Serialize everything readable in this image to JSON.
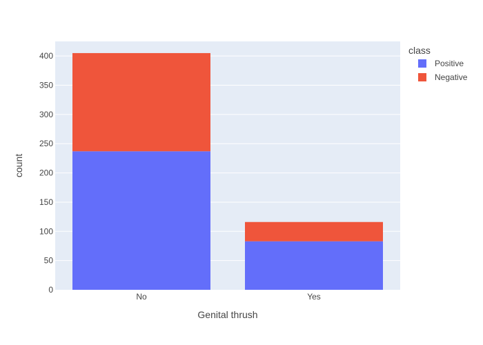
{
  "chart_data": {
    "type": "bar",
    "barmode": "stack",
    "categories": [
      "No",
      "Yes"
    ],
    "series": [
      {
        "name": "Positive",
        "values": [
          237,
          83
        ],
        "color": "#636efa"
      },
      {
        "name": "Negative",
        "values": [
          168,
          33
        ],
        "color": "#ef553b"
      }
    ],
    "xlabel": "Genital thrush",
    "ylabel": "count",
    "ylim": [
      0,
      425
    ],
    "yticks": [
      0,
      50,
      100,
      150,
      200,
      250,
      300,
      350,
      400
    ],
    "legend_title": "class",
    "legend_position": "top-right",
    "grid": true,
    "plot_background": "#e5ecf6"
  }
}
